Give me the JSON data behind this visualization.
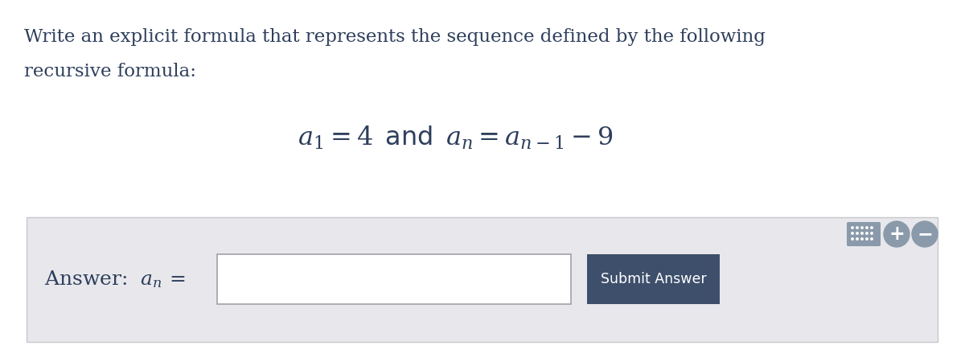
{
  "bg_color": "#ffffff",
  "panel_color": "#e8e8ec",
  "text_color": "#2e3f5c",
  "question_text_line1": "Write an explicit formula that represents the sequence defined by the following",
  "question_text_line2": "recursive formula:",
  "formula": "$a_1 = 4\\,$ and $\\,a_n = a_{n-1} - 9$",
  "answer_label": "Answer:  $a_n$ =",
  "submit_button_text": "Submit Answer",
  "submit_btn_color": "#3d4f6b",
  "submit_btn_text_color": "#ffffff",
  "input_box_color": "#ffffff",
  "input_box_border": "#a0a0a8",
  "panel_border": "#c8c8cc",
  "icon_color": "#8a9aaa",
  "figsize": [
    12,
    4.45
  ],
  "dpi": 100
}
